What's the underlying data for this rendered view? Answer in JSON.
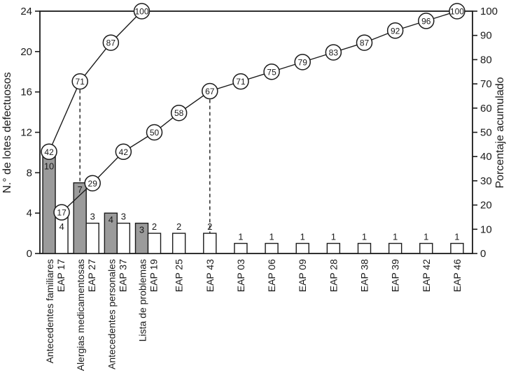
{
  "chart_data": {
    "type": "bar",
    "subtype": "pareto-double-series-with-cumulative-lines",
    "title": "",
    "grid": "off",
    "legend": "none",
    "left_axis": {
      "label": "N.° de lotes defectuosos",
      "min": 0,
      "max": 24,
      "ticks": [
        0,
        4,
        8,
        12,
        16,
        20,
        24
      ]
    },
    "right_axis": {
      "label": "Porcentaje acumulado",
      "min": 0,
      "max": 100,
      "ticks": [
        0,
        10,
        20,
        30,
        40,
        50,
        60,
        70,
        80,
        90,
        100
      ]
    },
    "categories": [
      {
        "name": "Antecedentes familiares",
        "code": "EAP 17"
      },
      {
        "name": "Alergias medicamentosas",
        "code": "EAP 27"
      },
      {
        "name": "Antecedentes personales",
        "code": "EAP 37"
      },
      {
        "name": "Lista de problemas",
        "code": "EAP 19"
      },
      {
        "name": "",
        "code": "EAP 25"
      },
      {
        "name": "",
        "code": "EAP 43"
      },
      {
        "name": "",
        "code": "EAP 03"
      },
      {
        "name": "",
        "code": "EAP 06"
      },
      {
        "name": "",
        "code": "EAP 09"
      },
      {
        "name": "",
        "code": "EAP 28"
      },
      {
        "name": "",
        "code": "EAP 38"
      },
      {
        "name": "",
        "code": "EAP 39"
      },
      {
        "name": "",
        "code": "EAP 42"
      },
      {
        "name": "",
        "code": "EAP 46"
      }
    ],
    "series": [
      {
        "name": "gray-bars",
        "fill": "#9b9b9b",
        "values": [
          10,
          7,
          4,
          3,
          null,
          null,
          null,
          null,
          null,
          null,
          null,
          null,
          null,
          null
        ],
        "cumulative_pct": [
          42,
          71,
          87,
          100,
          null,
          null,
          null,
          null,
          null,
          null,
          null,
          null,
          null,
          null
        ]
      },
      {
        "name": "white-bars",
        "fill": "#ffffff",
        "values": [
          4,
          3,
          3,
          2,
          2,
          2,
          1,
          1,
          1,
          1,
          1,
          1,
          1,
          1
        ],
        "cumulative_pct": [
          17,
          29,
          42,
          50,
          58,
          67,
          71,
          75,
          79,
          83,
          87,
          92,
          96,
          100
        ]
      }
    ],
    "dashed_drops": [
      {
        "series": 0,
        "category_index": 1,
        "pct": 71
      },
      {
        "series": 1,
        "category_index": 5,
        "pct": 67
      }
    ],
    "colors": {
      "stroke": "#1a1a1a",
      "bar_gray": "#9b9b9b",
      "bar_white": "#ffffff",
      "marker_fill": "#ffffff",
      "text": "#1a1a1a"
    }
  }
}
